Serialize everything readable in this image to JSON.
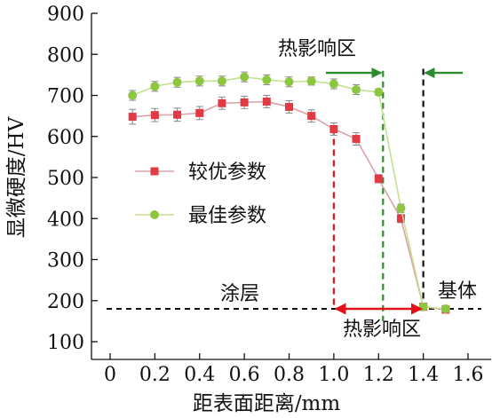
{
  "chart_data": {
    "type": "line",
    "xlabel": "距表面距离/mm",
    "ylabel": "显微硬度/HV",
    "xlim": [
      0,
      1.6
    ],
    "ylim": [
      100,
      900
    ],
    "xticks": [
      "0",
      "0.2",
      "0.4",
      "0.6",
      "0.8",
      "1.0",
      "1.2",
      "1.4",
      "1.6"
    ],
    "yticks": [
      "100",
      "200",
      "300",
      "400",
      "500",
      "600",
      "700",
      "800",
      "900"
    ],
    "legend_position": "middle-left",
    "series": [
      {
        "name": "较优参数",
        "color": "#e23a45",
        "line_color": "#d9a3a8",
        "marker": "square",
        "x": [
          0.1,
          0.2,
          0.3,
          0.4,
          0.5,
          0.6,
          0.7,
          0.8,
          0.9,
          1.0,
          1.1,
          1.2,
          1.3,
          1.4,
          1.5
        ],
        "values": [
          648,
          652,
          653,
          657,
          681,
          683,
          685,
          672,
          650,
          618,
          594,
          497,
          400,
          185,
          178
        ],
        "errors": [
          18,
          16,
          16,
          16,
          15,
          15,
          15,
          15,
          15,
          15,
          15,
          10,
          10,
          8,
          8
        ]
      },
      {
        "name": "最佳参数",
        "color": "#8dc63f",
        "line_color": "#c5e08f",
        "marker": "circle",
        "x": [
          0.1,
          0.2,
          0.3,
          0.4,
          0.5,
          0.6,
          0.7,
          0.8,
          0.9,
          1.0,
          1.1,
          1.2,
          1.3,
          1.4,
          1.5
        ],
        "values": [
          700,
          722,
          732,
          735,
          735,
          745,
          738,
          733,
          735,
          728,
          714,
          708,
          425,
          185,
          180
        ],
        "errors": [
          12,
          12,
          12,
          12,
          12,
          12,
          12,
          12,
          10,
          12,
          12,
          8,
          10,
          8,
          8
        ]
      }
    ],
    "annotations": {
      "coating_label": "涂层",
      "substrate_label": "基体",
      "haz_label_top": "热影响区",
      "haz_label_bottom": "热影响区",
      "baseline_value": 180,
      "red_vline_x": 1.0,
      "green_vline_x": 1.22,
      "black_vline_x": 1.4,
      "red_color": "#e0121c",
      "green_color": "#2e8b2e"
    }
  }
}
